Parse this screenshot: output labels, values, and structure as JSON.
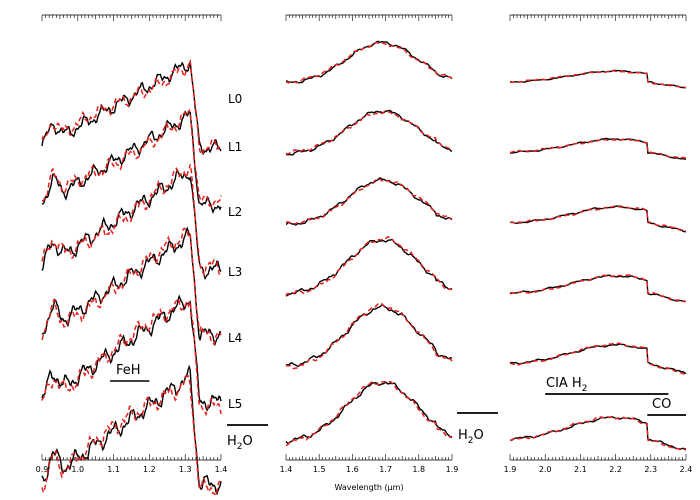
{
  "chart_data": {
    "type": "line",
    "xlabel": "Wavelength (µm)",
    "spectral_types": [
      "L0",
      "L1",
      "L2",
      "L3",
      "L4",
      "L5"
    ],
    "series_styles": [
      {
        "style": "solid",
        "color": "#000000"
      },
      {
        "style": "dashed",
        "color": "#e8201c"
      }
    ],
    "panels": [
      {
        "id": "J",
        "xlim": [
          0.9,
          1.4
        ],
        "xticks": [
          "0.9",
          "1.0",
          "1.1",
          "1.2",
          "1.3",
          "1.4"
        ],
        "tick_values": [
          0.9,
          1.0,
          1.1,
          1.2,
          1.3,
          1.4
        ],
        "minor_step": 0.01
      },
      {
        "id": "H",
        "xlim": [
          1.4,
          1.9
        ],
        "xticks": [
          "1.4",
          "1.5",
          "1.6",
          "1.7",
          "1.8",
          "1.9"
        ],
        "tick_values": [
          1.4,
          1.5,
          1.6,
          1.7,
          1.8,
          1.9
        ],
        "minor_step": 0.01
      },
      {
        "id": "K",
        "xlim": [
          1.9,
          2.4
        ],
        "xticks": [
          "1.9",
          "2.0",
          "2.1",
          "2.2",
          "2.3",
          "2.4"
        ],
        "tick_values": [
          1.9,
          2.0,
          2.1,
          2.2,
          2.3,
          2.4
        ],
        "minor_step": 0.01
      }
    ],
    "annotations": {
      "feh": {
        "text": "FeH",
        "range": [
          1.09,
          1.2
        ]
      },
      "h2o_1": {
        "main": "H",
        "sub": "2",
        "tail": "O",
        "range": [
          1.43,
          1.53
        ]
      },
      "h2o_2": {
        "main": "H",
        "sub": "2",
        "tail": "O",
        "range": [
          1.74,
          1.86
        ]
      },
      "cia": {
        "main": "CIA H",
        "sub": "2",
        "range": [
          2.0,
          2.35
        ]
      },
      "co": {
        "text": "CO",
        "range": [
          2.29,
          2.4
        ]
      }
    }
  }
}
